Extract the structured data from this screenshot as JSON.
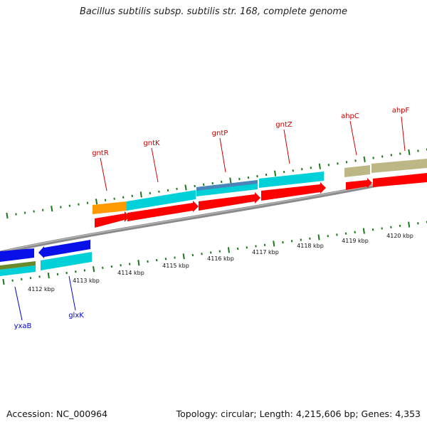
{
  "title": "Bacillus subtilis subsp. subtilis str. 168, complete genome",
  "footer": {
    "accession": "Accession: NC_000964",
    "stats": "Topology: circular; Length: 4,215,606 bp; Genes: 4,353"
  },
  "colors": {
    "backbone": "#8a8a8a",
    "tick": "#1a7a1a",
    "forward_label": "#cc0000",
    "reverse_label": "#0000cc",
    "cds": "#ff0000",
    "cyan": "#00d0d8",
    "orange": "#ff9900",
    "steel": "#4a84b8",
    "khaki": "#bdb785",
    "blue": "#0a10e8",
    "olive": "#6a8a2a"
  },
  "scale_labels": [
    "4112 kbp",
    "4113 kbp",
    "4114 kbp",
    "4115 kbp",
    "4116 kbp",
    "4117 kbp",
    "4118 kbp",
    "4119 kbp",
    "4120 kbp"
  ],
  "forward_genes": [
    {
      "name": "gntR"
    },
    {
      "name": "gntK"
    },
    {
      "name": "gntP"
    },
    {
      "name": "gntZ"
    },
    {
      "name": "ahpC"
    },
    {
      "name": "ahpF"
    }
  ],
  "reverse_genes": [
    {
      "name": "yxaB"
    },
    {
      "name": "glxK"
    }
  ]
}
